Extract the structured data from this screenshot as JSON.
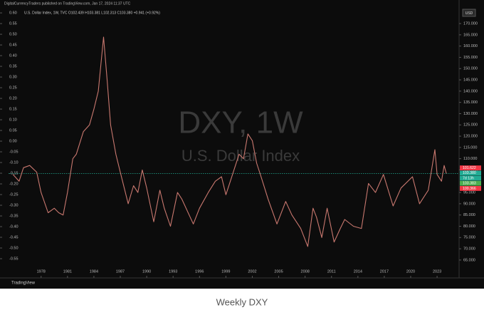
{
  "header": {
    "publisher": "DigitalCurrencyTraders published on TradingView.com, Jan 17, 2024 11:37 UTC",
    "symbol_info": "U.S. Dollar Index, 1W, TVC  O102.439 H103.381 L102.313 C103.380 +0.941 (+0.92%)",
    "currency": "USD"
  },
  "chart_data": {
    "type": "line",
    "watermark_symbol": "DXY, 1W",
    "watermark_name": "U.S. Dollar Index",
    "color": "#c9786f",
    "x": [
      1974.8,
      1975.5,
      1976.0,
      1976.7,
      1977.5,
      1978.0,
      1978.8,
      1979.5,
      1980.0,
      1980.5,
      1981.0,
      1981.6,
      1982.0,
      1982.8,
      1983.5,
      1984.0,
      1984.5,
      1985.1,
      1985.5,
      1985.9,
      1986.5,
      1987.0,
      1987.9,
      1988.5,
      1989.0,
      1989.5,
      1990.0,
      1990.8,
      1991.5,
      1992.0,
      1992.7,
      1993.5,
      1994.0,
      1995.3,
      1996.0,
      1997.0,
      1997.8,
      1998.5,
      1999.0,
      1999.5,
      2000.5,
      2001.0,
      2001.5,
      2002.0,
      2002.5,
      2003.0,
      2003.8,
      2004.8,
      2005.8,
      2006.5,
      2007.5,
      2008.3,
      2008.9,
      2009.3,
      2009.9,
      2010.5,
      2011.3,
      2012.0,
      2012.5,
      2013.5,
      2014.4,
      2015.2,
      2016.0,
      2016.9,
      2018.0,
      2018.9,
      2020.2,
      2021.0,
      2021.5,
      2022.0,
      2022.75,
      2023.0,
      2023.5,
      2023.8,
      2024.05
    ],
    "values": [
      103,
      100,
      106,
      107,
      104,
      95,
      86,
      88,
      86,
      85,
      95,
      110,
      112,
      122,
      125,
      132,
      140,
      164,
      145,
      125,
      112,
      104,
      90,
      98,
      95,
      105,
      97,
      82,
      96,
      88,
      80,
      95,
      92,
      81,
      88,
      95,
      100,
      102,
      94,
      100,
      112,
      110,
      121,
      118,
      108,
      102,
      92,
      81,
      91,
      85,
      79,
      71,
      88,
      84,
      75,
      88,
      73,
      79,
      83,
      80,
      79,
      99,
      95,
      103,
      89,
      97,
      102,
      90,
      93,
      96,
      114,
      103,
      100,
      107,
      103.4
    ],
    "xlim": [
      1974.3,
      2025.5
    ],
    "xticks": [
      1978,
      1981,
      1984,
      1987,
      1990,
      1993,
      1996,
      1999,
      2002,
      2005,
      2008,
      2011,
      2014,
      2017,
      2020,
      2023
    ],
    "ylim": [
      61.8,
      177.3
    ],
    "yticks": [
      {
        "value": 170,
        "label": "170.000"
      },
      {
        "value": 165,
        "label": "165.000"
      },
      {
        "value": 160,
        "label": "160.000"
      },
      {
        "value": 155,
        "label": "155.000"
      },
      {
        "value": 150,
        "label": "150.000"
      },
      {
        "value": 145,
        "label": "145.000"
      },
      {
        "value": 140,
        "label": "140.000"
      },
      {
        "value": 135,
        "label": "135.000"
      },
      {
        "value": 130,
        "label": "130.000"
      },
      {
        "value": 125,
        "label": "125.000"
      },
      {
        "value": 120,
        "label": "120.000"
      },
      {
        "value": 115,
        "label": "115.000"
      },
      {
        "value": 110,
        "label": "110.000"
      },
      {
        "value": 105,
        "label": "105.000"
      },
      {
        "value": 95,
        "label": "95.000"
      },
      {
        "value": 90,
        "label": "90.000"
      },
      {
        "value": 85,
        "label": "85.000"
      },
      {
        "value": 80,
        "label": "80.000"
      },
      {
        "value": 75,
        "label": "75.000"
      },
      {
        "value": 70,
        "label": "70.000"
      },
      {
        "value": 65,
        "label": "65.000"
      }
    ],
    "y2lim": [
      -0.59,
      0.627
    ],
    "y2ticks": [
      {
        "value": 0.6,
        "label": "0.60"
      },
      {
        "value": 0.55,
        "label": "0.55"
      },
      {
        "value": 0.5,
        "label": "0.50"
      },
      {
        "value": 0.45,
        "label": "0.45"
      },
      {
        "value": 0.4,
        "label": "0.40"
      },
      {
        "value": 0.35,
        "label": "0.35"
      },
      {
        "value": 0.3,
        "label": "0.30"
      },
      {
        "value": 0.25,
        "label": "0.25"
      },
      {
        "value": 0.2,
        "label": "0.20"
      },
      {
        "value": 0.15,
        "label": "0.15"
      },
      {
        "value": 0.1,
        "label": "0.10"
      },
      {
        "value": 0.05,
        "label": "0.05"
      },
      {
        "value": 0,
        "label": "0.00"
      },
      {
        "value": -0.05,
        "label": "-0.05"
      },
      {
        "value": -0.1,
        "label": "-0.10"
      },
      {
        "value": -0.15,
        "label": "-0.15"
      },
      {
        "value": -0.2,
        "label": "-0.20"
      },
      {
        "value": -0.25,
        "label": "-0.25"
      },
      {
        "value": -0.3,
        "label": "-0.30"
      },
      {
        "value": -0.35,
        "label": "-0.35"
      },
      {
        "value": -0.4,
        "label": "-0.40"
      },
      {
        "value": -0.45,
        "label": "-0.45"
      },
      {
        "value": -0.5,
        "label": "-0.50"
      },
      {
        "value": -0.55,
        "label": "-0.55"
      }
    ],
    "last_price": 103.38,
    "last_price_color": "#22ab94",
    "price_labels": [
      {
        "text": "101.622",
        "color": "#f23645"
      },
      {
        "text": "103.380",
        "color": "#22ab94"
      },
      {
        "text": "7d 13h",
        "color": "#22ab94"
      },
      {
        "text": "103.383",
        "color": "#4caf50"
      },
      {
        "text": "100.366",
        "color": "#f23645"
      }
    ]
  },
  "footer": {
    "brand": "TradingView"
  },
  "caption": "Weekly DXY"
}
